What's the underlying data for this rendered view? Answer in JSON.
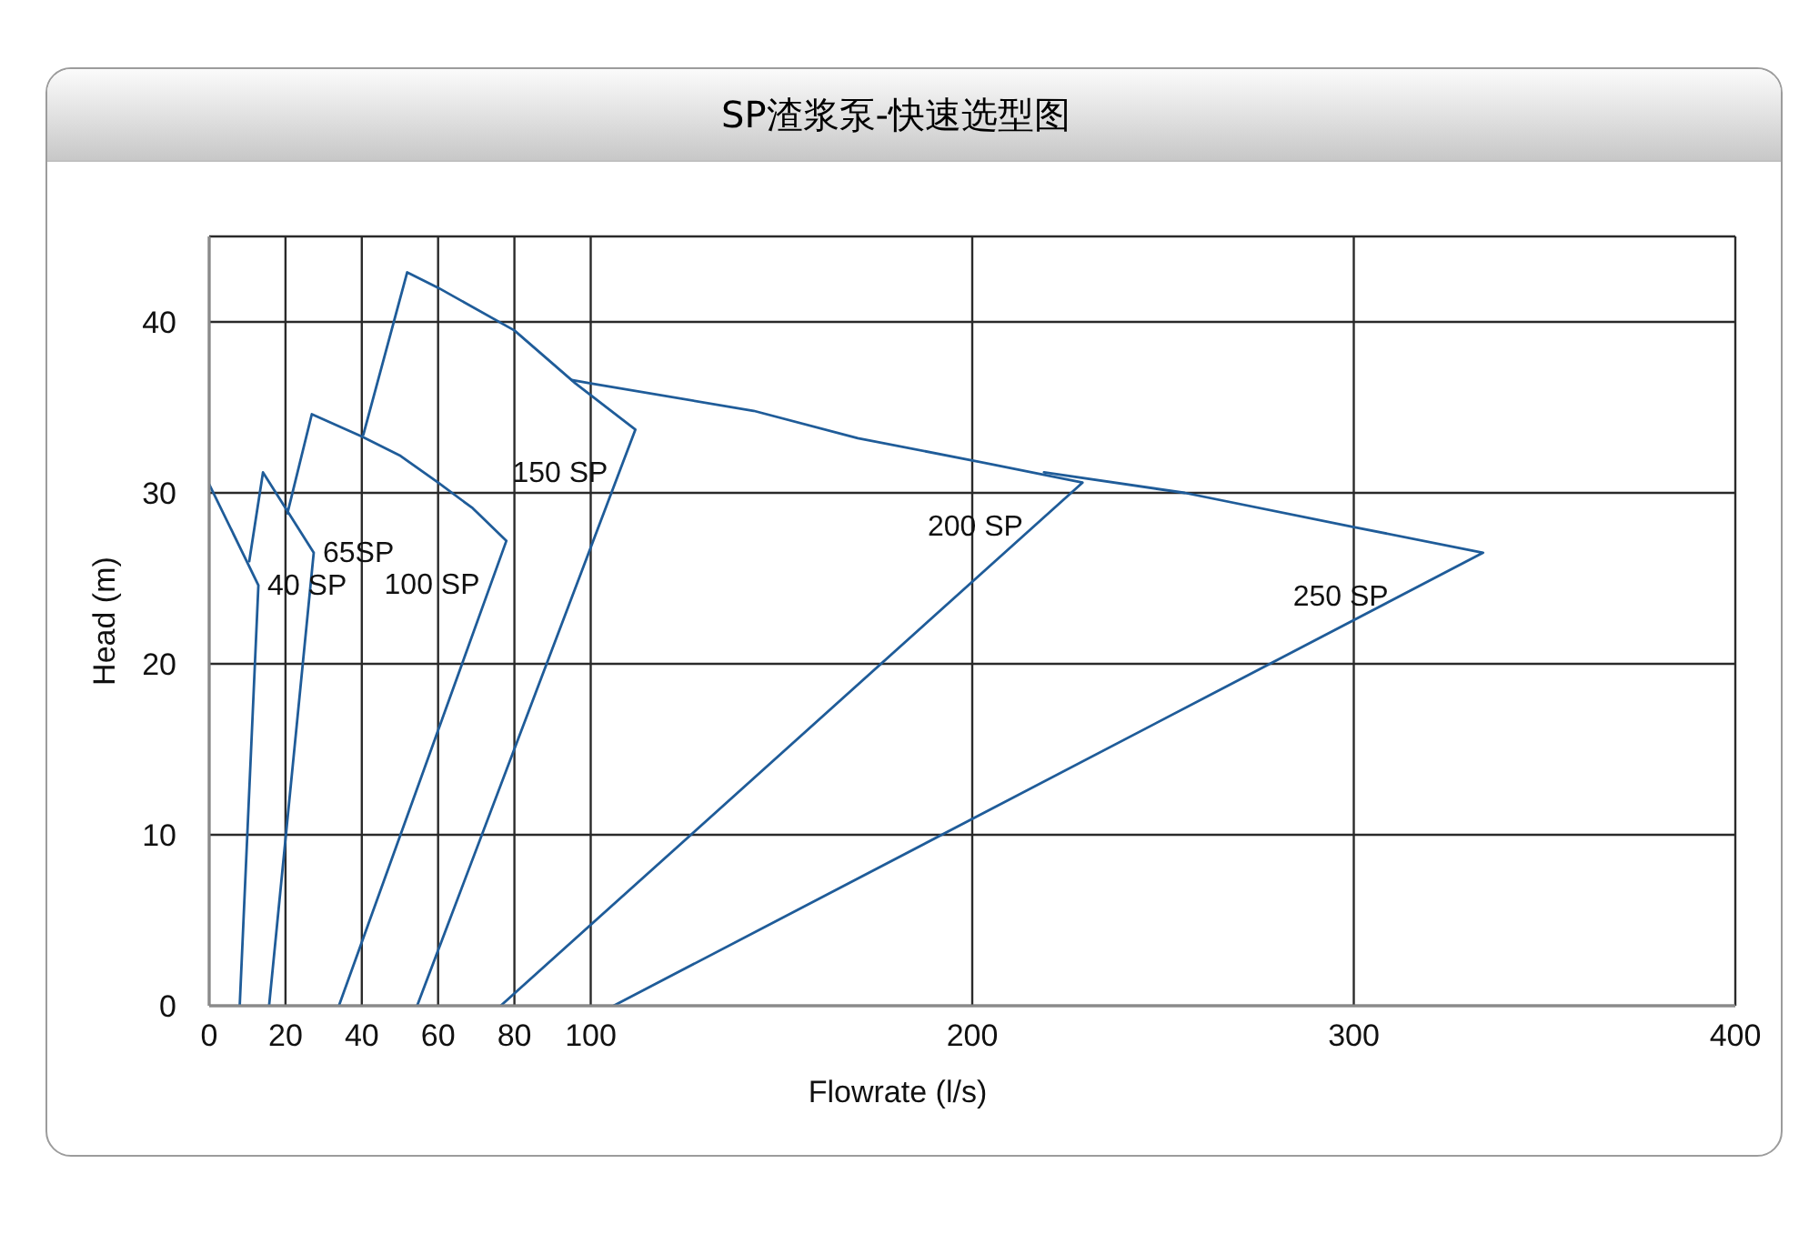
{
  "chart_data": {
    "type": "line",
    "title": "SP渣浆泵-快速选型图",
    "xlabel": "Flowrate (l/s)",
    "ylabel": "Head (m)",
    "xlim": [
      0,
      400
    ],
    "xticks": [
      0,
      20,
      40,
      60,
      80,
      100,
      200,
      300,
      400
    ],
    "ylim": [
      0,
      45
    ],
    "yticks": [
      0,
      10,
      20,
      30,
      40
    ],
    "grid": true,
    "marker": "none",
    "line_style": "solid",
    "series": [
      {
        "name": "40 SP",
        "color": "#1f5c99",
        "x": [
          0,
          12.9,
          8
        ],
        "values": [
          30.5,
          24.6,
          0
        ]
      },
      {
        "name": "65SP",
        "color": "#1f5c99",
        "x": [
          10.5,
          14.1,
          27.4,
          15.7
        ],
        "values": [
          26,
          31.2,
          26.5,
          0
        ]
      },
      {
        "name": "100 SP",
        "color": "#1f5c99",
        "x": [
          20.5,
          26.9,
          40,
          49.9,
          60,
          69.1,
          77.9,
          34
        ],
        "values": [
          28.8,
          34.6,
          33.3,
          32.2,
          30.6,
          29.1,
          27.2,
          0
        ]
      },
      {
        "name": "150 SP",
        "color": "#1f5c99",
        "x": [
          40.4,
          51.9,
          60,
          80,
          96,
          111.7,
          54.5
        ],
        "values": [
          33.4,
          42.9,
          42,
          39.5,
          36.4,
          33.7,
          0
        ]
      },
      {
        "name": "200 SP",
        "color": "#1f5c99",
        "x": [
          95,
          100,
          142.7,
          170,
          200,
          228.9,
          76.4
        ],
        "values": [
          36.6,
          36.4,
          34.8,
          33.2,
          31.9,
          30.6,
          0
        ]
      },
      {
        "name": "250 SP",
        "color": "#1f5c99",
        "x": [
          218.8,
          255.7,
          300,
          333.9,
          106
        ],
        "values": [
          31.2,
          30,
          28,
          26.5,
          0
        ]
      }
    ]
  }
}
